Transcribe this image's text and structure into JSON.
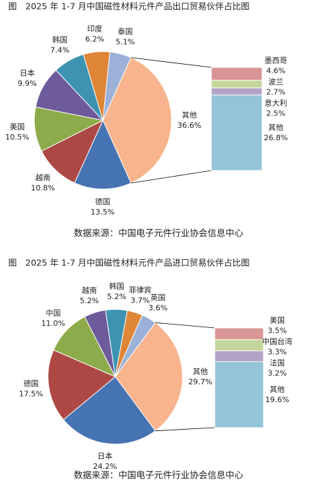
{
  "chart_data": [
    {
      "type": "pie",
      "title": "图　2025 年 1-7 月中国磁性材料元件产品出口贸易伙伴占比图",
      "categories": [
        "泰国",
        "其他",
        "德国",
        "越南",
        "美国",
        "日本",
        "韩国",
        "印度"
      ],
      "values": [
        5.1,
        36.6,
        13.5,
        10.8,
        10.5,
        9.9,
        7.4,
        6.2
      ],
      "value_labels": [
        "5.1%",
        "36.6%",
        "13.5%",
        "10.8%",
        "10.5%",
        "9.9%",
        "7.4%",
        "6.2%"
      ],
      "colors": [
        "#9bb1d8",
        "#f8b48d",
        "#4673b1",
        "#ad4845",
        "#8dab4b",
        "#6d5b9c",
        "#3f93b2",
        "#de8538"
      ],
      "bar": {
        "categories": [
          "墨西哥",
          "波兰",
          "意大利",
          "其他"
        ],
        "values": [
          4.6,
          2.7,
          2.5,
          26.8
        ],
        "value_labels": [
          "4.6%",
          "2.7%",
          "2.5%",
          "26.8%"
        ],
        "colors": [
          "#d99694",
          "#c3d69b",
          "#b3a2c7",
          "#93c4d8"
        ]
      },
      "source": "数据来源：中国电子元件行业协会信息中心"
    },
    {
      "type": "pie",
      "title": "图　2025 年 1-7 月中国磁性材料元件产品进口贸易伙伴占比图",
      "categories": [
        "英国",
        "其他",
        "日本",
        "德国",
        "中国",
        "越南",
        "韩国",
        "菲律宾"
      ],
      "values": [
        3.6,
        29.7,
        24.2,
        17.5,
        11.0,
        5.2,
        5.2,
        3.7
      ],
      "value_labels": [
        "3.6%",
        "29.7%",
        "24.2%",
        "17.5%",
        "11.0%",
        "5.2%",
        "5.2%",
        "3.7%"
      ],
      "colors": [
        "#9bb1d8",
        "#f8b48d",
        "#4673b1",
        "#ad4845",
        "#8dab4b",
        "#6d5b9c",
        "#3f93b2",
        "#de8538"
      ],
      "bar": {
        "categories": [
          "美国",
          "中国台湾",
          "法国",
          "其他"
        ],
        "values": [
          3.5,
          3.3,
          3.2,
          19.6
        ],
        "value_labels": [
          "3.5%",
          "3.3%",
          "3.2%",
          "19.6%"
        ],
        "colors": [
          "#d99694",
          "#c3d69b",
          "#b3a2c7",
          "#93c4d8"
        ]
      },
      "source": "数据来源：中国电子元件行业协会信息中心"
    }
  ]
}
